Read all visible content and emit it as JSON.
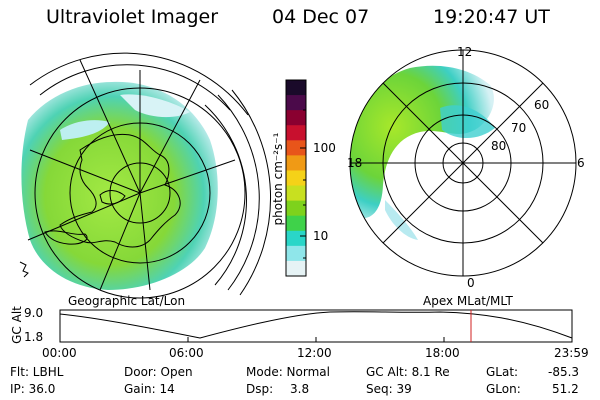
{
  "header": {
    "title": "Ultraviolet Imager",
    "date": "04 Dec 07",
    "time": "19:20:47 UT"
  },
  "colorbar": {
    "unit_label": "photon cm⁻²s⁻¹",
    "ticks": [
      "100",
      "10"
    ],
    "colors": [
      "#1a0a2a",
      "#4b0a4a",
      "#8a0030",
      "#c8102e",
      "#e8551a",
      "#f09a15",
      "#f5d218",
      "#c8e020",
      "#7ed21c",
      "#3fd24a",
      "#2ad6c8",
      "#8fe6ea",
      "#e6f3f5"
    ]
  },
  "geo_panel": {
    "label": "Geographic Lat/Lon"
  },
  "mag_panel": {
    "label": "Apex  MLat/MLT",
    "mlt_labels": {
      "top": "12",
      "bottom": "0",
      "left": "18",
      "right": "6"
    },
    "lat_labels": [
      "60",
      "70",
      "80"
    ]
  },
  "altitude_plot": {
    "ylabel": "GC Alt",
    "y_ticks": [
      "9.0",
      "1.8"
    ],
    "x_ticks": [
      "00:00",
      "06:00",
      "12:00",
      "18:00",
      "23:59"
    ],
    "marker_color": "#d02020"
  },
  "info": {
    "flt": "Flt: LBHL",
    "ip": "IP: 36.0",
    "door": "Door: Open",
    "gain": "Gain: 14",
    "mode": "Mode: Normal",
    "dsp_label": "Dsp:",
    "dsp_value": "3.8",
    "gc_alt": "GC Alt: 8.1 Re",
    "seq": "Seq: 39",
    "glat_label": "GLat:",
    "glat_value": "-85.3",
    "glon_label": "GLon:",
    "glon_value": "51.2"
  }
}
